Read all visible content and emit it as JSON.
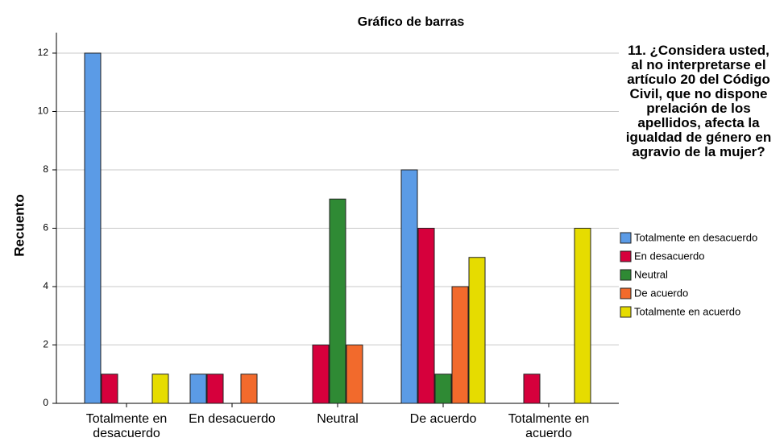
{
  "chart_data": {
    "type": "bar",
    "title": "Gráfico de barras",
    "ylabel": "Recuento",
    "legend_title": "11. ¿Considera usted, al no interpretarse el artículo 20 del Código Civil, que no dispone prelación de los apellidos, afecta la igualdad de género en agravio de la mujer?",
    "categories": [
      "Totalmente en desacuerdo",
      "En desacuerdo",
      "Neutral",
      "De acuerdo",
      "Totalmente en acuerdo"
    ],
    "series": [
      {
        "name": "Totalmente en desacuerdo",
        "color": "#5b9be6",
        "values": [
          12,
          1,
          0,
          8,
          0
        ]
      },
      {
        "name": "En desacuerdo",
        "color": "#d6003c",
        "values": [
          1,
          1,
          2,
          6,
          1
        ]
      },
      {
        "name": "Neutral",
        "color": "#2f8a34",
        "values": [
          0,
          0,
          7,
          1,
          0
        ]
      },
      {
        "name": "De acuerdo",
        "color": "#f26a2c",
        "values": [
          0,
          1,
          2,
          4,
          0
        ]
      },
      {
        "name": "Totalmente en acuerdo",
        "color": "#e6dc00",
        "values": [
          1,
          0,
          0,
          5,
          6
        ]
      }
    ],
    "ylim": [
      0,
      12.7
    ],
    "yticks": [
      0,
      2,
      4,
      6,
      8,
      10,
      12
    ],
    "grid": true,
    "legend": "right"
  }
}
